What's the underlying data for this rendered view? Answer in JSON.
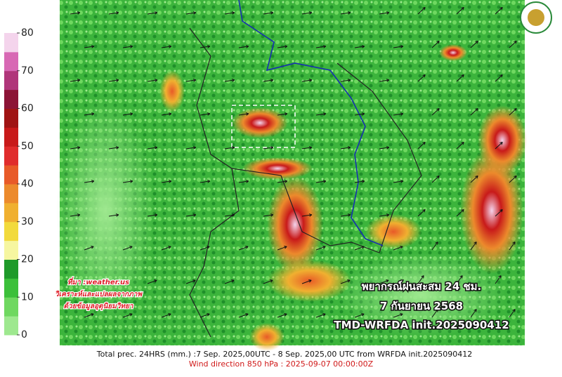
{
  "legend": {
    "ticks": [
      0,
      10,
      20,
      30,
      40,
      50,
      60,
      70,
      80
    ],
    "colors": [
      "#9ee88f",
      "#6fd860",
      "#3cc03a",
      "#1f9a2a",
      "#f6f6a0",
      "#f2da3c",
      "#f0b030",
      "#ec8a2c",
      "#e85a28",
      "#e02c2c",
      "#c81a1a",
      "#a01414",
      "#8c1436",
      "#b0367a",
      "#d868b4",
      "#f4d4ec"
    ]
  },
  "source": [
    "ที่มา :weather.us",
    "วิเคราะห์และแปลผลจากภาพ",
    "ด้วยข้อมูลอุตุนิยมวิทยา"
  ],
  "title": [
    "พยากรณ์ฝนสะสม 24 ชม.",
    "7 กันยายน 2568",
    "TMD-WRFDA init.2025090412"
  ],
  "footer": [
    "Total prec. 24HRS (mm.) :7 Sep. 2025,00UTC - 8 Sep. 2025,00 UTC from WRFDA init.2025090412",
    "Wind direction 850 hPa : 2025-09-07 00:00:00Z"
  ]
}
